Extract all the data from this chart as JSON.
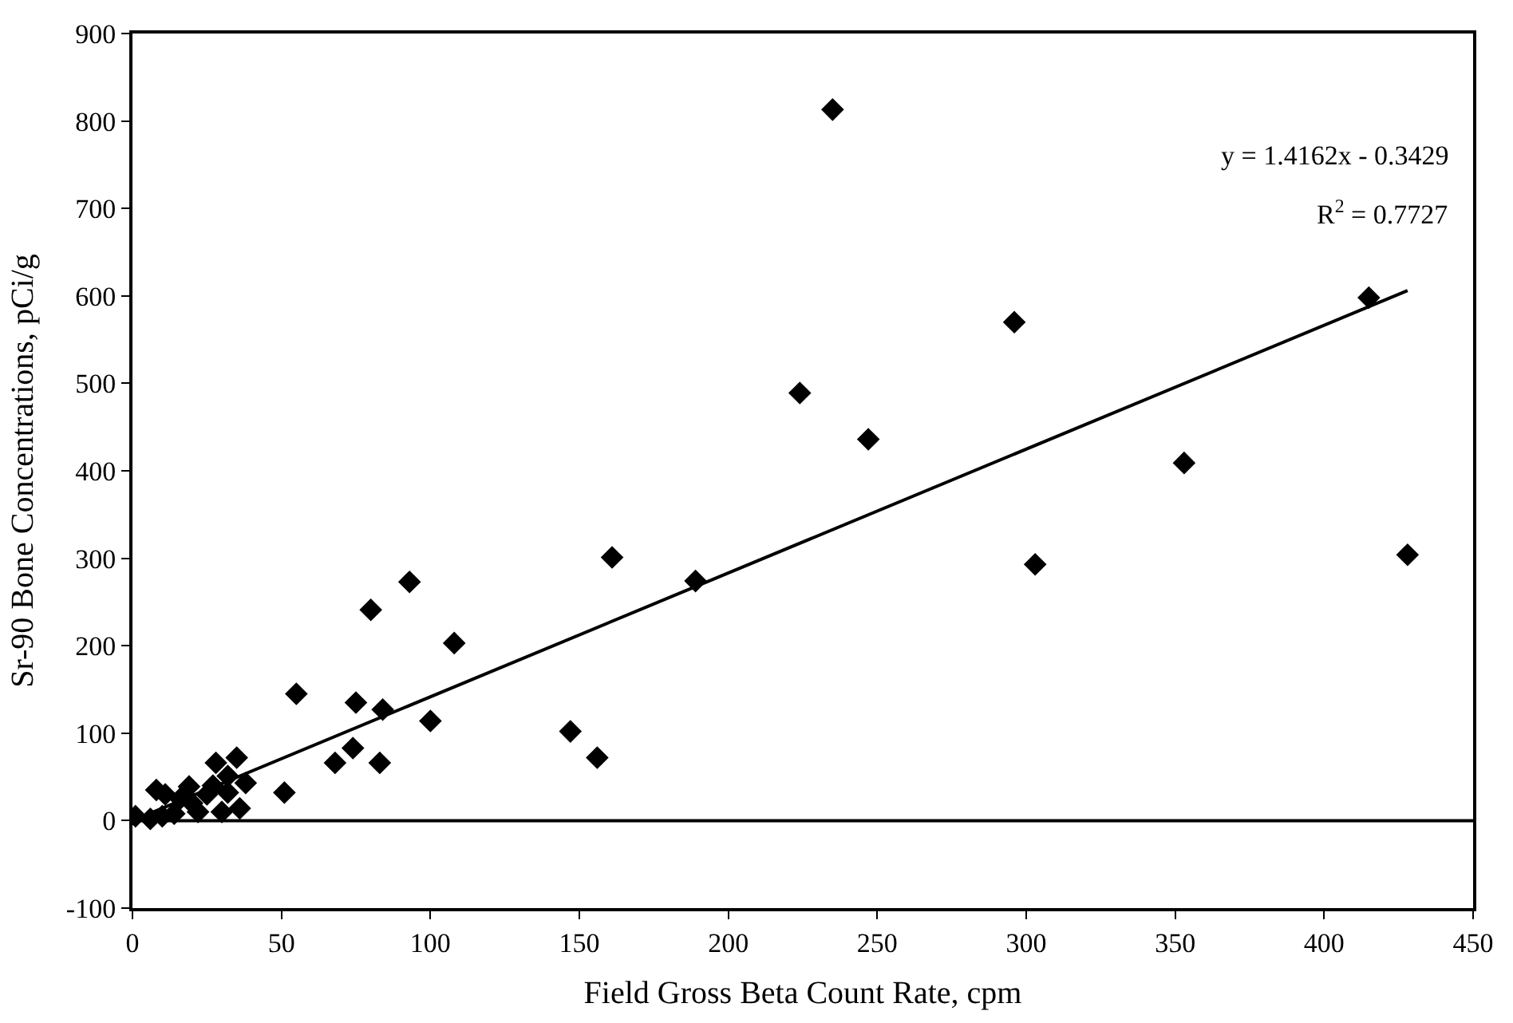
{
  "chart_data": {
    "type": "scatter",
    "xlabel": "Field Gross Beta Count Rate, cpm",
    "ylabel": "Sr-90 Bone Concentrations, pCi/g",
    "annotations": [
      "y = 1.4162x - 0.3429",
      "R$^{2}$ = 0.7727"
    ],
    "series": [
      {
        "color": "#000000",
        "marker": "diamond",
        "x": [
          235,
          296,
          224,
          247,
          353,
          161,
          189,
          303,
          428,
          415,
          93,
          80,
          108,
          55,
          75,
          84,
          100,
          147,
          156,
          74,
          68,
          83,
          51,
          35,
          28,
          38,
          32,
          32,
          30,
          36,
          19,
          1,
          5,
          6,
          7,
          8,
          9,
          10,
          11,
          14,
          16,
          20,
          22,
          25,
          27
        ],
        "values": [
          813,
          570,
          489,
          436,
          409,
          301,
          274,
          293,
          304,
          598,
          273,
          241,
          203,
          145,
          135,
          127,
          114,
          102,
          72,
          83,
          66,
          66,
          32,
          72,
          66,
          43,
          51,
          32,
          10,
          14,
          39,
          5,
          null,
          2,
          null,
          35,
          null,
          5,
          30,
          8,
          25,
          20,
          10,
          30,
          40
        ]
      },
      {
        "type": "line",
        "color": "#000000",
        "marker": "none",
        "line_style": "solid",
        "x": [
          0,
          428
        ],
        "values": [
          0,
          606
        ]
      }
    ],
    "ref_lines": [
      {
        "axis": "y",
        "value": 0,
        "color": "#000000"
      }
    ],
    "xlim": [
      0,
      450
    ],
    "xticks": [
      0,
      50,
      100,
      150,
      200,
      250,
      300,
      350,
      400,
      450
    ],
    "ylim": [
      -100,
      900
    ],
    "yticks": [
      -100,
      0,
      100,
      200,
      300,
      400,
      500,
      600,
      700,
      800,
      900
    ],
    "grid": false
  }
}
